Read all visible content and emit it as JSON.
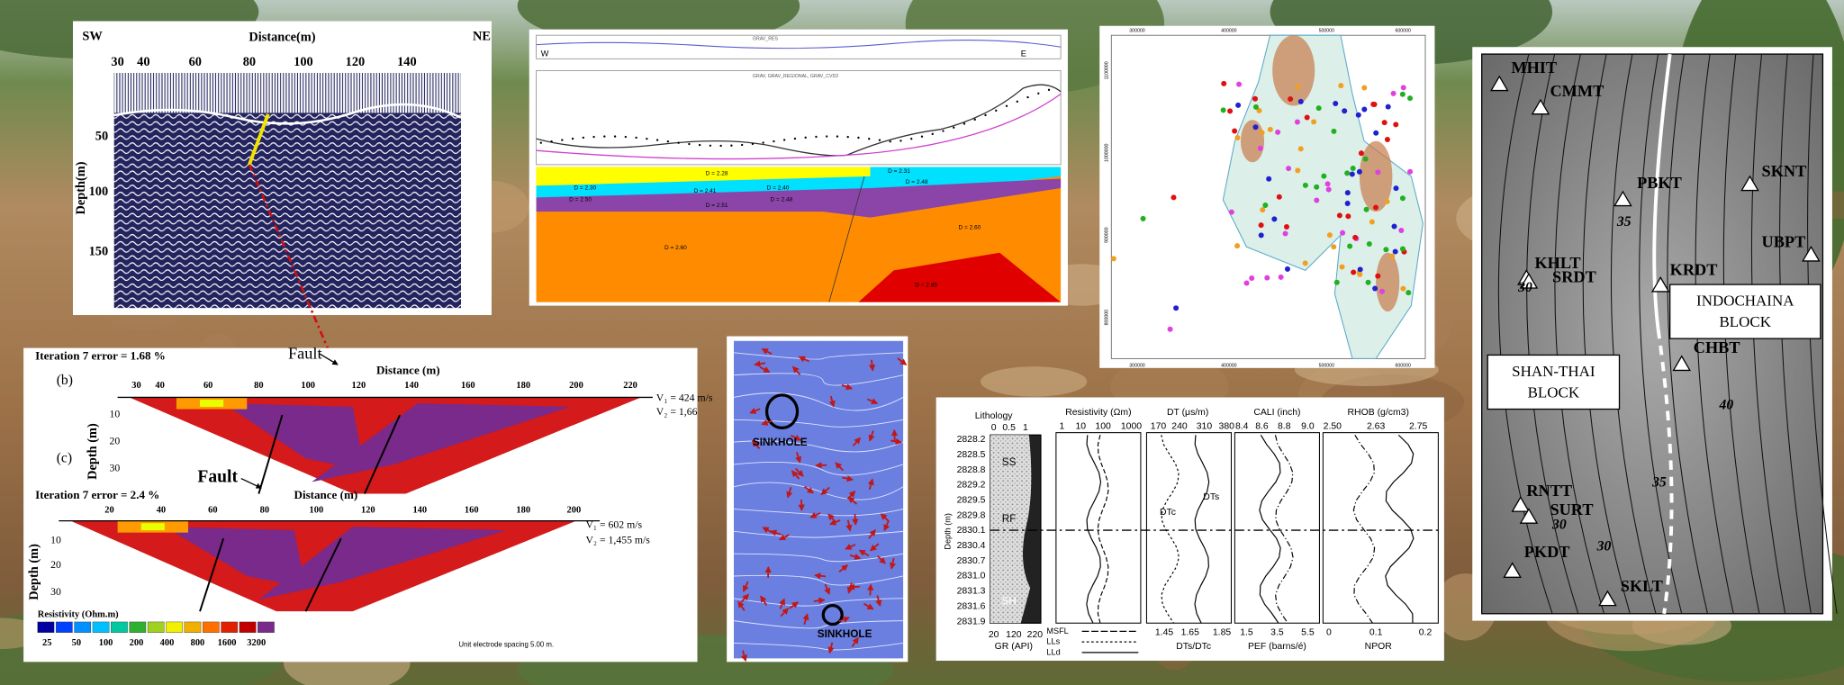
{
  "seismic": {
    "left_label": "SW",
    "right_label": "NE",
    "x_title": "Distance(m)",
    "y_title": "Depth(m)",
    "x_ticks": [
      "30",
      "40",
      "60",
      "80",
      "100",
      "120",
      "140"
    ],
    "y_ticks": [
      "50",
      "100",
      "150"
    ]
  },
  "gravity": {
    "top_title": "GRAV_RES",
    "middle_title": "GRAV, GRAV_REGIONAL, GRAV_CVD2",
    "left_marker": "W",
    "right_marker": "E",
    "densities": [
      "D = 2.28",
      "D = 2.30",
      "D = 2.41",
      "D = 2.40",
      "D = 2.50",
      "D = 2.51",
      "D = 2.48",
      "D = 2.31",
      "D = 2.48",
      "D = 2.60",
      "D = 2.60",
      "D = 2.85"
    ]
  },
  "location_map": {
    "x_ticks_top": [
      "300000",
      "400000",
      "500000",
      "600000"
    ],
    "x_ticks_bottom": [
      "300000",
      "400000",
      "500000",
      "600000"
    ],
    "y_ticks": [
      "1100000",
      "1000000",
      "900000",
      "800000"
    ]
  },
  "relief_map": {
    "stations": [
      "MHIT",
      "CMMT",
      "PBKT",
      "SKNT",
      "KHLT",
      "SRDT",
      "KRDT",
      "UBPT",
      "CHBT",
      "RNTT",
      "SURT",
      "PKDT",
      "SKLT"
    ],
    "blocks": [
      {
        "lines": [
          "INDOCHAINA",
          "BLOCK"
        ]
      },
      {
        "lines": [
          "SHAN-THAI",
          "BLOCK"
        ]
      }
    ],
    "contour_labels": [
      "35",
      "40",
      "35",
      "30",
      "30",
      "30"
    ]
  },
  "resistivity": {
    "section_b": {
      "panel": "(b)",
      "iteration": "Iteration 7 error = 1.68 %",
      "fault": "Fault",
      "x_title": "Distance (m)",
      "y_title": "Depth (m)",
      "x_ticks": [
        "30",
        "40",
        "60",
        "80",
        "100",
        "120",
        "140",
        "160",
        "180",
        "200",
        "220"
      ],
      "y_ticks": [
        "10",
        "20",
        "30"
      ],
      "v1": "V₁ = 424 m/s",
      "v2": "V₂ = 1,66"
    },
    "section_c": {
      "panel": "(c)",
      "iteration": "Iteration 7 error = 2.4 %",
      "fault": "Fault",
      "x_title": "Distance (m)",
      "y_title": "Depth (m)",
      "x_ticks": [
        "20",
        "40",
        "60",
        "80",
        "100",
        "120",
        "140",
        "160",
        "180",
        "200"
      ],
      "y_ticks": [
        "10",
        "20",
        "30"
      ],
      "v1": "V₁ = 602 m/s",
      "v2": "V₂ = 1,455 m/s"
    },
    "legend_title": "Resistivity (Ohm.m)",
    "legend_values": [
      "25",
      "50",
      "100",
      "200",
      "400",
      "800",
      "1600",
      "3200"
    ],
    "note": "Unit electrode spacing 5.00 m."
  },
  "sinkhole_map": {
    "labels": [
      "SINKHOLE",
      "SINKHOLE"
    ]
  },
  "well_log": {
    "lithology_title": "Lithology",
    "lithology_scale": [
      "0",
      "0.5",
      "1"
    ],
    "depth_title": "Depth (m)",
    "depths": [
      "2828.2",
      "2828.5",
      "2828.8",
      "2829.2",
      "2829.5",
      "2829.8",
      "2830.1",
      "2830.4",
      "2830.7",
      "2831.0",
      "2831.3",
      "2831.6",
      "2831.9"
    ],
    "lithologies": [
      "SS",
      "RF",
      "SH"
    ],
    "gr_scale": [
      "20",
      "120",
      "220"
    ],
    "gr_title": "GR (API)",
    "resistivity_title": "Resistivity (Ωm)",
    "resistivity_scale": [
      "1",
      "10",
      "100",
      "1000"
    ],
    "resistivity_legend": [
      "MSFL",
      "LLs",
      "LLd"
    ],
    "dt_title": "DT (μs/m)",
    "dt_scale": [
      "170",
      "240",
      "310",
      "380"
    ],
    "dt_curves": [
      "DTc",
      "DTs"
    ],
    "ratio_scale": [
      "1.45",
      "1.65",
      "1.85"
    ],
    "ratio_title": "DTs/DTc",
    "cali_title": "CALI (inch)",
    "cali_scale": [
      "8.4",
      "8.6",
      "8.8",
      "9.0"
    ],
    "pef_scale": [
      "1.5",
      "3.5",
      "5.5"
    ],
    "pef_title": "PEF (barns/é)",
    "rhob_title": "RHOB (g/cm3)",
    "rhob_scale": [
      "2.50",
      "2.63",
      "2.75"
    ],
    "npor_scale": [
      "0",
      "0.1",
      "0.2"
    ],
    "npor_title": "NPOR"
  }
}
